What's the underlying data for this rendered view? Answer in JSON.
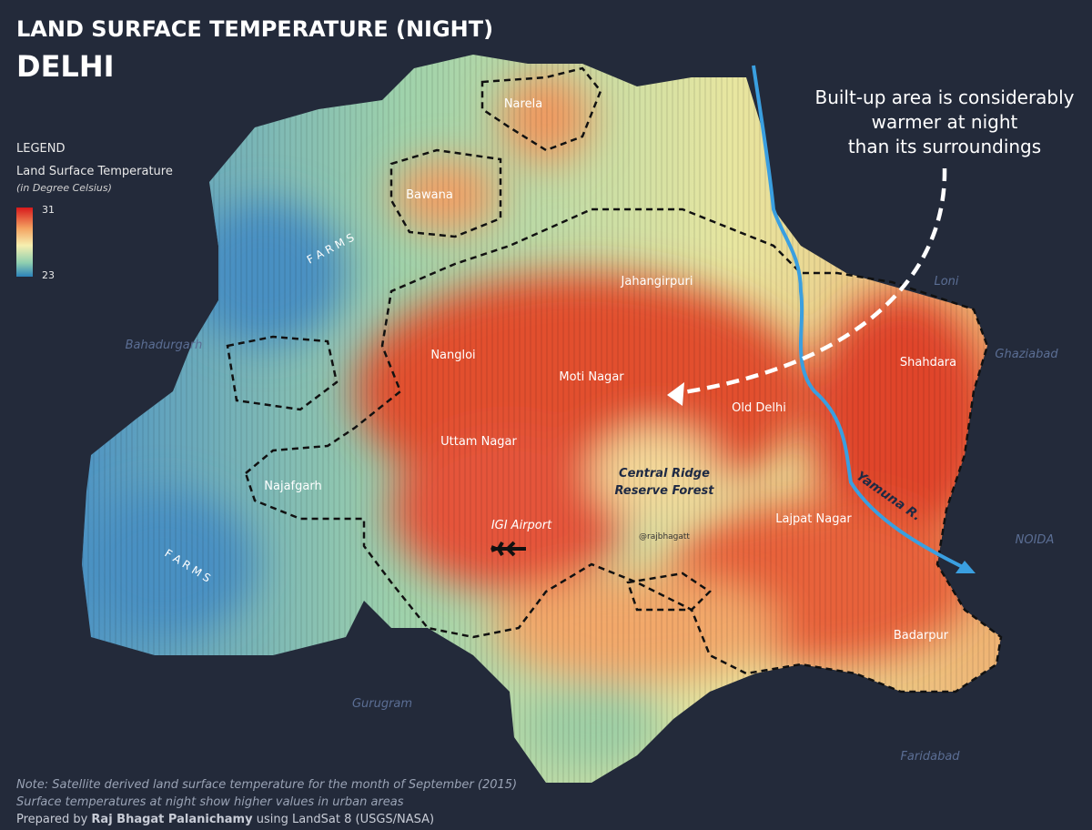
{
  "header": {
    "title": "LAND SURFACE TEMPERATURE (NIGHT)",
    "subtitle": "DELHI"
  },
  "legend": {
    "heading": "LEGEND",
    "title": "Land Surface Temperature",
    "unit": "(in Degree Celsius)",
    "max": 31,
    "min": 23
  },
  "annotation": [
    "Built-up area is considerably",
    "warmer at night",
    "than its surroundings"
  ],
  "places": [
    "Narela",
    "Bawana",
    "Jahangirpuri",
    "Nangloi",
    "Moti Nagar",
    "Old Delhi",
    "Shahdara",
    "Uttam Nagar",
    "Najafgarh",
    "IGI Airport",
    "Lajpat Nagar",
    "Badarpur"
  ],
  "landmark": [
    "Central Ridge",
    "Reserve Forest"
  ],
  "farms": [
    "F A R M S",
    "F A R M S"
  ],
  "neighbors": [
    "Bahadurgarh",
    "Loni",
    "Ghaziabad",
    "NOIDA",
    "Gurugram",
    "Faridabad"
  ],
  "river": "Yamuna R.",
  "handle": "@rajbhagatt",
  "notes": [
    "Note: Satellite derived land surface temperature for the month of September (2015)",
    "Surface temperatures at night show higher values in urban areas"
  ],
  "credit": {
    "prefix": "Prepared by ",
    "author": "Raj Bhagat Palanichamy",
    "suffix": " using LandSat 8 (USGS/NASA)"
  }
}
